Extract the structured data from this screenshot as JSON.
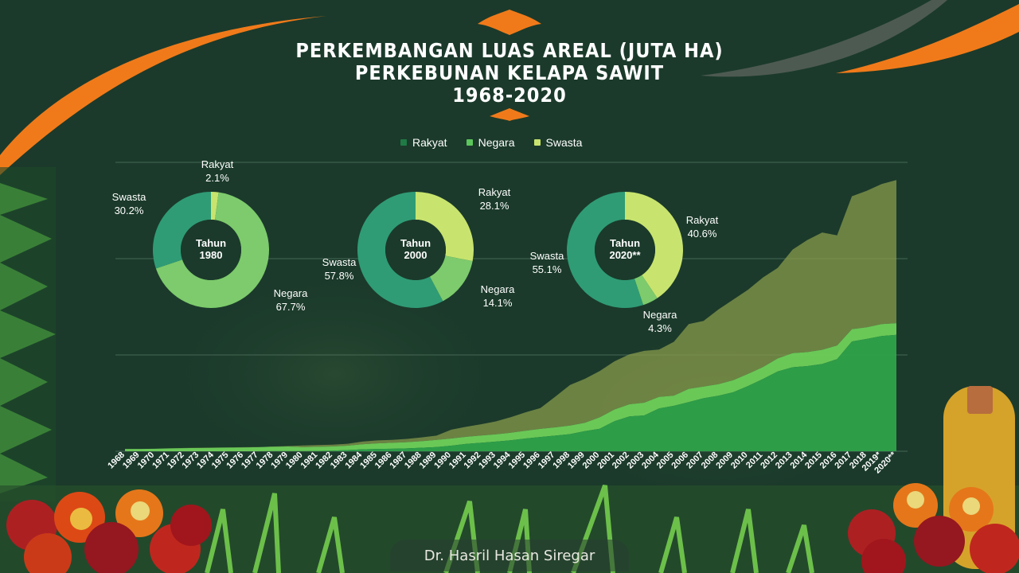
{
  "title": {
    "line1": "PERKEMBANGAN LUAS AREAL (JUTA HA)",
    "line2": "PERKEBUNAN KELAPA SAWIT",
    "line3": "1968-2020"
  },
  "legend": [
    {
      "label": "Rakyat",
      "color": "#1f7a45"
    },
    {
      "label": "Negara",
      "color": "#5cc65c"
    },
    {
      "label": "Swasta",
      "color": "#c8e46e"
    }
  ],
  "author": "Dr. Hasril Hasan Siregar",
  "donuts": [
    {
      "center": [
        "Tahun",
        "1980"
      ],
      "slices": [
        {
          "name": "Rakyat",
          "label": "Rakyat",
          "pct_text": "2.1%",
          "value": 2.1,
          "color": "#c8e46e"
        },
        {
          "name": "Negara",
          "label": "Negara",
          "pct_text": "67.7%",
          "value": 67.7,
          "color": "#7dcb6c"
        },
        {
          "name": "Swasta",
          "label": "Swasta",
          "pct_text": "30.2%",
          "value": 30.2,
          "color": "#2f9c76"
        }
      ]
    },
    {
      "center": [
        "Tahun",
        "2000"
      ],
      "slices": [
        {
          "name": "Rakyat",
          "label": "Rakyat",
          "pct_text": "28.1%",
          "value": 28.1,
          "color": "#c8e46e"
        },
        {
          "name": "Negara",
          "label": "Negara",
          "pct_text": "14.1%",
          "value": 14.1,
          "color": "#7dcb6c"
        },
        {
          "name": "Swasta",
          "label": "Swasta",
          "pct_text": "57.8%",
          "value": 57.8,
          "color": "#2f9c76"
        }
      ]
    },
    {
      "center": [
        "Tahun",
        "2020**"
      ],
      "slices": [
        {
          "name": "Rakyat",
          "label": "Rakyat",
          "pct_text": "40.6%",
          "value": 40.6,
          "color": "#c8e46e"
        },
        {
          "name": "Negara",
          "label": "Negara",
          "pct_text": "4.3%",
          "value": 4.3,
          "color": "#7dcb6c"
        },
        {
          "name": "Swasta",
          "label": "Swasta",
          "pct_text": "55.1%",
          "value": 55.1,
          "color": "#2f9c76"
        }
      ]
    }
  ],
  "chart_data": {
    "type": "area",
    "stacked": true,
    "title": "PERKEMBANGAN LUAS AREAL (JUTA HA) PERKEBUNAN KELAPA SAWIT 1968-2020",
    "xlabel": "",
    "ylabel": "",
    "ylim": [
      0,
      15
    ],
    "grid": true,
    "legend_position": "top",
    "categories": [
      "1968",
      "1969",
      "1970",
      "1971",
      "1972",
      "1973",
      "1974",
      "1975",
      "1976",
      "1977",
      "1978",
      "1979",
      "1980",
      "1981",
      "1982",
      "1983",
      "1984",
      "1985",
      "1986",
      "1987",
      "1988",
      "1989",
      "1990",
      "1991",
      "1992",
      "1993",
      "1994",
      "1995",
      "1996",
      "1997",
      "1998",
      "1999",
      "2000",
      "2001",
      "2002",
      "2003",
      "2004",
      "2005",
      "2006",
      "2007",
      "2008",
      "2009",
      "2010",
      "2011",
      "2012",
      "2013",
      "2014",
      "2015",
      "2016",
      "2017",
      "2018",
      "2019*",
      "2020**"
    ],
    "series": [
      {
        "name": "Rakyat",
        "color": "#2e9e4a",
        "values": [
          0.0,
          0.0,
          0.0,
          0.0,
          0.0,
          0.0,
          0.0,
          0.0,
          0.0,
          0.0,
          0.01,
          0.01,
          0.01,
          0.02,
          0.03,
          0.06,
          0.1,
          0.12,
          0.13,
          0.15,
          0.18,
          0.22,
          0.29,
          0.38,
          0.44,
          0.5,
          0.57,
          0.66,
          0.74,
          0.81,
          0.89,
          1.04,
          1.17,
          1.56,
          1.81,
          1.86,
          2.22,
          2.36,
          2.55,
          2.75,
          2.88,
          3.06,
          3.39,
          3.75,
          4.14,
          4.36,
          4.42,
          4.53,
          4.78,
          5.7,
          5.83,
          5.98,
          6.04
        ]
      },
      {
        "name": "Negara",
        "color": "#6fd05a",
        "values": [
          0.12,
          0.12,
          0.13,
          0.15,
          0.16,
          0.17,
          0.18,
          0.19,
          0.2,
          0.21,
          0.22,
          0.24,
          0.2,
          0.21,
          0.22,
          0.23,
          0.26,
          0.29,
          0.31,
          0.32,
          0.34,
          0.37,
          0.37,
          0.37,
          0.38,
          0.38,
          0.39,
          0.4,
          0.42,
          0.43,
          0.44,
          0.44,
          0.59,
          0.61,
          0.63,
          0.66,
          0.6,
          0.53,
          0.69,
          0.61,
          0.6,
          0.63,
          0.63,
          0.62,
          0.68,
          0.73,
          0.73,
          0.74,
          0.71,
          0.64,
          0.61,
          0.62,
          0.61
        ]
      },
      {
        "name": "Swasta",
        "color": "#8aa04a",
        "values": [
          0.0,
          0.0,
          0.0,
          0.0,
          0.01,
          0.01,
          0.01,
          0.01,
          0.01,
          0.01,
          0.02,
          0.02,
          0.09,
          0.09,
          0.09,
          0.1,
          0.14,
          0.15,
          0.15,
          0.17,
          0.2,
          0.22,
          0.46,
          0.52,
          0.58,
          0.67,
          0.81,
          0.96,
          1.08,
          1.59,
          2.11,
          2.28,
          2.4,
          2.5,
          2.59,
          2.69,
          2.46,
          2.79,
          3.36,
          3.41,
          3.88,
          4.18,
          4.37,
          4.65,
          4.7,
          5.38,
          5.82,
          6.09,
          5.72,
          6.9,
          7.08,
          7.27,
          7.43
        ]
      }
    ]
  }
}
